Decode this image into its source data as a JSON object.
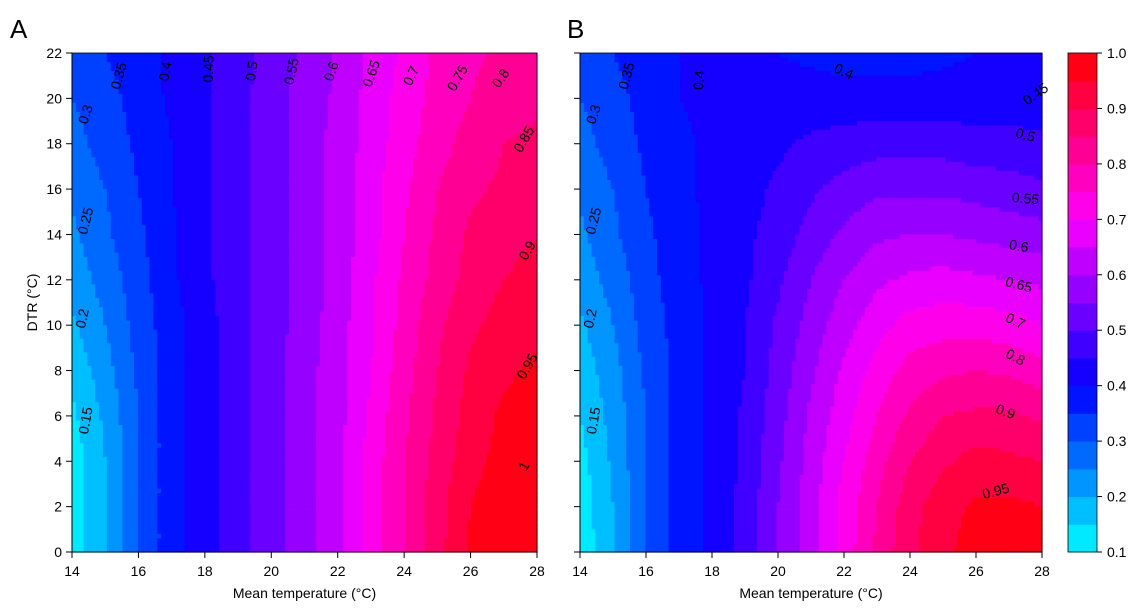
{
  "panels": [
    {
      "letter": "A",
      "xlabel": "Mean temperature (°C)",
      "ylabel": "DTR (°C)",
      "xticks": [
        "14",
        "16",
        "18",
        "20",
        "22",
        "24",
        "26",
        "28"
      ],
      "yticks": [
        "0",
        "2",
        "4",
        "6",
        "8",
        "10",
        "12",
        "14",
        "16",
        "18",
        "20",
        "22"
      ],
      "contour_labels": [
        "0.15",
        "0.2",
        "0.25",
        "0.3",
        "0.35",
        "0.4",
        "0.45",
        "0.5",
        "0.55",
        "0.6",
        "0.65",
        "0.7",
        "0.75",
        "0.8",
        "0.85",
        "0.9",
        "0.95",
        "1"
      ]
    },
    {
      "letter": "B",
      "xlabel": "Mean temperature (°C)",
      "ylabel": "",
      "xticks": [
        "14",
        "16",
        "18",
        "20",
        "22",
        "24",
        "26",
        "28"
      ],
      "yticks": [
        "",
        "",
        "",
        "",
        "",
        "",
        "",
        "",
        "",
        "",
        "",
        ""
      ],
      "contour_labels": [
        "0.15",
        "0.2",
        "0.25",
        "0.3",
        "0.35",
        "0.4",
        "0.4",
        "0.45",
        "0.5",
        "0.55",
        "0.6",
        "0.65",
        "0.7",
        "0.8",
        "0.9",
        "0.95"
      ]
    }
  ],
  "colorbar": {
    "ticks": [
      "1.0",
      "0.9",
      "0.8",
      "0.7",
      "0.6",
      "0.5",
      "0.4",
      "0.3",
      "0.2",
      "0.1"
    ],
    "low_color": "#00ffff",
    "mid_color": "#0000ff",
    "upper_color": "#ff00ff",
    "high_color": "#ff0000"
  },
  "chart_data": [
    {
      "type": "heatmap",
      "subtype": "filled-contour",
      "panel": "A",
      "xlabel": "Mean temperature (°C)",
      "ylabel": "DTR (°C)",
      "xlim": [
        14,
        28
      ],
      "ylim": [
        0,
        22
      ],
      "levels": [
        0.1,
        0.15,
        0.2,
        0.25,
        0.3,
        0.35,
        0.4,
        0.45,
        0.5,
        0.55,
        0.6,
        0.65,
        0.7,
        0.75,
        0.8,
        0.85,
        0.9,
        0.95,
        1.0
      ],
      "x": [
        14,
        15,
        16,
        17,
        18,
        19,
        20,
        21,
        22,
        23,
        24,
        25,
        26,
        27,
        28
      ],
      "y": [
        0,
        2,
        4,
        6,
        8,
        10,
        12,
        14,
        16,
        18,
        20,
        22
      ],
      "z": [
        [
          0.12,
          0.2,
          0.3,
          0.38,
          0.43,
          0.48,
          0.53,
          0.58,
          0.64,
          0.72,
          0.8,
          0.88,
          0.96,
          1.0,
          1.0
        ],
        [
          0.12,
          0.2,
          0.3,
          0.38,
          0.43,
          0.48,
          0.53,
          0.58,
          0.64,
          0.72,
          0.8,
          0.88,
          0.95,
          0.99,
          1.0
        ],
        [
          0.12,
          0.2,
          0.3,
          0.38,
          0.43,
          0.48,
          0.53,
          0.58,
          0.64,
          0.72,
          0.8,
          0.87,
          0.93,
          0.97,
          0.99
        ],
        [
          0.14,
          0.21,
          0.3,
          0.38,
          0.43,
          0.48,
          0.53,
          0.58,
          0.63,
          0.71,
          0.79,
          0.86,
          0.92,
          0.96,
          0.98
        ],
        [
          0.16,
          0.23,
          0.31,
          0.38,
          0.43,
          0.48,
          0.53,
          0.58,
          0.63,
          0.7,
          0.78,
          0.85,
          0.91,
          0.94,
          0.96
        ],
        [
          0.19,
          0.25,
          0.32,
          0.38,
          0.43,
          0.48,
          0.53,
          0.57,
          0.63,
          0.69,
          0.77,
          0.84,
          0.89,
          0.92,
          0.94
        ],
        [
          0.22,
          0.27,
          0.33,
          0.39,
          0.44,
          0.48,
          0.53,
          0.57,
          0.62,
          0.69,
          0.76,
          0.82,
          0.87,
          0.9,
          0.92
        ],
        [
          0.24,
          0.29,
          0.34,
          0.39,
          0.44,
          0.48,
          0.53,
          0.57,
          0.62,
          0.68,
          0.75,
          0.81,
          0.86,
          0.88,
          0.9
        ],
        [
          0.26,
          0.3,
          0.35,
          0.4,
          0.44,
          0.48,
          0.53,
          0.57,
          0.62,
          0.68,
          0.74,
          0.8,
          0.84,
          0.86,
          0.88
        ],
        [
          0.28,
          0.32,
          0.36,
          0.4,
          0.44,
          0.48,
          0.53,
          0.57,
          0.62,
          0.67,
          0.73,
          0.78,
          0.82,
          0.85,
          0.86
        ],
        [
          0.3,
          0.33,
          0.37,
          0.41,
          0.44,
          0.48,
          0.53,
          0.57,
          0.61,
          0.67,
          0.72,
          0.77,
          0.8,
          0.83,
          0.84
        ],
        [
          0.32,
          0.35,
          0.38,
          0.41,
          0.44,
          0.48,
          0.52,
          0.56,
          0.61,
          0.66,
          0.71,
          0.76,
          0.79,
          0.81,
          0.82
        ]
      ]
    },
    {
      "type": "heatmap",
      "subtype": "filled-contour",
      "panel": "B",
      "xlabel": "Mean temperature (°C)",
      "ylabel": "",
      "xlim": [
        14,
        28
      ],
      "ylim": [
        0,
        22
      ],
      "levels": [
        0.1,
        0.15,
        0.2,
        0.25,
        0.3,
        0.35,
        0.4,
        0.45,
        0.5,
        0.55,
        0.6,
        0.65,
        0.7,
        0.75,
        0.8,
        0.85,
        0.9,
        0.95,
        1.0
      ],
      "x": [
        14,
        15,
        16,
        17,
        18,
        19,
        20,
        21,
        22,
        23,
        24,
        25,
        26,
        27,
        28
      ],
      "y": [
        0,
        2,
        4,
        6,
        8,
        10,
        12,
        14,
        16,
        18,
        20,
        22
      ],
      "z": [
        [
          0.11,
          0.2,
          0.3,
          0.37,
          0.41,
          0.47,
          0.55,
          0.63,
          0.72,
          0.81,
          0.89,
          0.94,
          0.97,
          0.98,
          0.98
        ],
        [
          0.12,
          0.2,
          0.3,
          0.37,
          0.41,
          0.47,
          0.55,
          0.63,
          0.72,
          0.8,
          0.88,
          0.93,
          0.96,
          0.96,
          0.95
        ],
        [
          0.13,
          0.21,
          0.3,
          0.37,
          0.41,
          0.46,
          0.54,
          0.62,
          0.7,
          0.78,
          0.85,
          0.89,
          0.92,
          0.91,
          0.9
        ],
        [
          0.15,
          0.22,
          0.3,
          0.37,
          0.41,
          0.46,
          0.53,
          0.61,
          0.68,
          0.75,
          0.81,
          0.85,
          0.86,
          0.86,
          0.84
        ],
        [
          0.17,
          0.23,
          0.31,
          0.37,
          0.41,
          0.45,
          0.52,
          0.59,
          0.66,
          0.72,
          0.77,
          0.79,
          0.8,
          0.79,
          0.77
        ],
        [
          0.19,
          0.25,
          0.32,
          0.37,
          0.41,
          0.45,
          0.51,
          0.57,
          0.63,
          0.68,
          0.72,
          0.73,
          0.73,
          0.72,
          0.7
        ],
        [
          0.22,
          0.27,
          0.33,
          0.38,
          0.41,
          0.44,
          0.49,
          0.55,
          0.6,
          0.64,
          0.66,
          0.67,
          0.66,
          0.65,
          0.64
        ],
        [
          0.24,
          0.29,
          0.34,
          0.38,
          0.41,
          0.44,
          0.47,
          0.52,
          0.56,
          0.59,
          0.6,
          0.6,
          0.59,
          0.58,
          0.57
        ],
        [
          0.26,
          0.3,
          0.35,
          0.39,
          0.41,
          0.43,
          0.46,
          0.49,
          0.52,
          0.54,
          0.54,
          0.54,
          0.53,
          0.52,
          0.51
        ],
        [
          0.28,
          0.32,
          0.36,
          0.39,
          0.41,
          0.42,
          0.44,
          0.46,
          0.47,
          0.48,
          0.48,
          0.48,
          0.47,
          0.47,
          0.46
        ],
        [
          0.3,
          0.33,
          0.37,
          0.4,
          0.41,
          0.41,
          0.42,
          0.42,
          0.42,
          0.42,
          0.42,
          0.42,
          0.42,
          0.42,
          0.42
        ],
        [
          0.32,
          0.35,
          0.38,
          0.4,
          0.41,
          0.4,
          0.4,
          0.39,
          0.38,
          0.38,
          0.38,
          0.39,
          0.4,
          0.4,
          0.4
        ]
      ]
    }
  ]
}
